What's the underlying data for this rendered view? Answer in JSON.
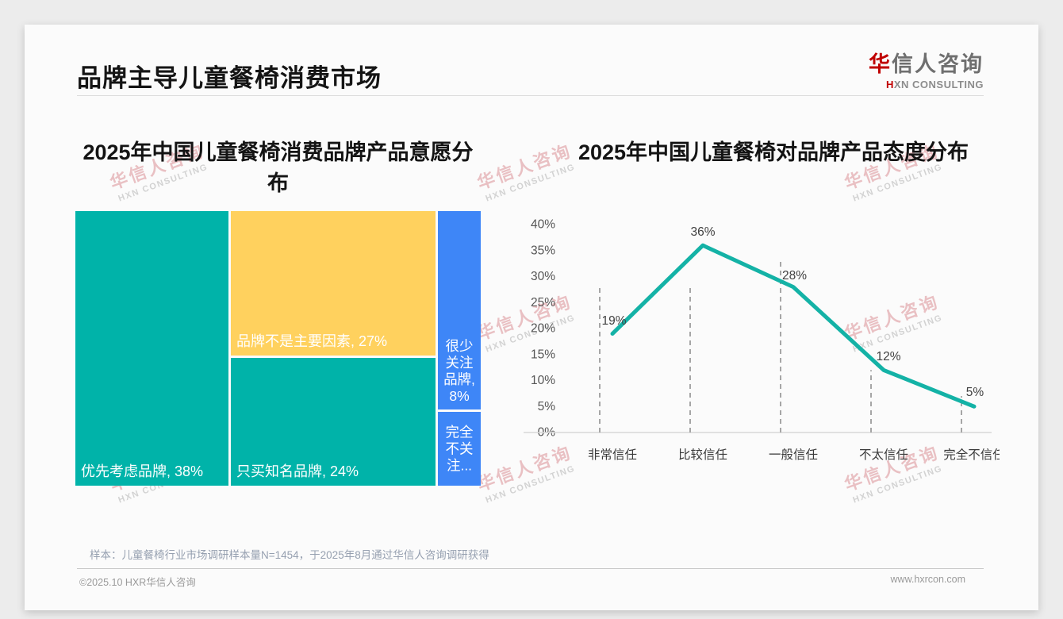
{
  "header": {
    "title": "品牌主导儿童餐椅消费市场",
    "logo": {
      "zh_accent": "华",
      "zh_rest": "信人咨询",
      "en_accent": "H",
      "en_rest": "XN CONSULTING"
    }
  },
  "watermark": {
    "line1": "华信人咨询",
    "line2": "HXN CONSULTING"
  },
  "footnote": "样本：儿童餐椅行业市场调研样本量N=1454，于2025年8月通过华信人咨询调研获得",
  "footer": {
    "left": "©2025.10 HXR华信人咨询",
    "right": "www.hxrcon.com"
  },
  "colors": {
    "teal": "#00B3A9",
    "yellow": "#FFD15E",
    "blue": "#3E86F7",
    "line_teal": "#14B2A6",
    "logo_red": "#C00000"
  },
  "chart_data": [
    {
      "type": "treemap",
      "title": "2025年中国儿童餐椅消费品牌产品意愿分布",
      "items": [
        {
          "label": "优先考虑品牌",
          "value_pct": 38,
          "display": "优先考虑品牌, 38%",
          "color_key": "teal"
        },
        {
          "label": "品牌不是主要因素",
          "value_pct": 27,
          "display": "品牌不是主要因素, 27%",
          "color_key": "yellow"
        },
        {
          "label": "只买知名品牌",
          "value_pct": 24,
          "display": "只买知名品牌, 24%",
          "color_key": "teal"
        },
        {
          "label": "很少关注品牌",
          "value_pct": 8,
          "display_lines": [
            "很少",
            "关注",
            "品牌,",
            "8%"
          ],
          "color_key": "blue"
        },
        {
          "label": "完全不关注品牌",
          "value_pct": 3,
          "display_lines": [
            "完全",
            "不关",
            "注..."
          ],
          "color_key": "blue"
        }
      ]
    },
    {
      "type": "line",
      "title": "2025年中国儿童餐椅对品牌产品态度分布",
      "categories": [
        "非常信任",
        "比较信任",
        "一般信任",
        "不太信任",
        "完全不信任"
      ],
      "values": [
        19,
        36,
        28,
        12,
        5
      ],
      "point_labels": [
        "19%",
        "36%",
        "28%",
        "12%",
        "5%"
      ],
      "ylim": [
        0,
        40
      ],
      "ytick_step": 5,
      "ytick_labels": [
        "0%",
        "5%",
        "10%",
        "15%",
        "20%",
        "25%",
        "30%",
        "35%",
        "40%"
      ],
      "guide_tops_pct": [
        28.5,
        28.5,
        33.5,
        12,
        7
      ],
      "grid": "dashed-vertical-guides",
      "legend": "none"
    }
  ]
}
